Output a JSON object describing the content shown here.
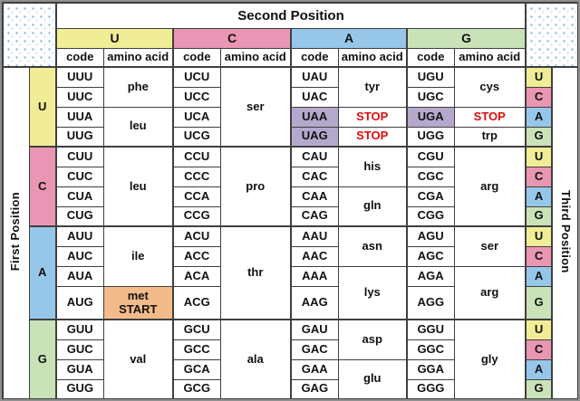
{
  "colors": {
    "base_U": "#F1ED96",
    "base_C": "#E896B3",
    "base_A": "#96C7E9",
    "base_G": "#C9E2B8",
    "stop_bg": "#B5A8CD",
    "stop_text": "#E00C0C",
    "start_bg": "#F4BB8A",
    "border": "#3F3F3F",
    "frame": "#8F8F8F",
    "dot_blue": "#8FBEE4",
    "dot_light": "#D6E8F7",
    "text": "#111111"
  },
  "table": {
    "top_header": "Second Position",
    "left_header": "First Position",
    "right_header": "Third Position",
    "groups": [
      "U",
      "C",
      "A",
      "G"
    ],
    "subheaders": [
      "code",
      "amino acid"
    ],
    "rows": [
      {
        "group_start": true,
        "cells": [
          {
            "text": "U",
            "kind": "row-letter",
            "rowspan": 4
          },
          {
            "text": "UUU",
            "kind": "code"
          },
          {
            "text": "phe",
            "kind": "amino",
            "rowspan": 2
          },
          {
            "text": "UCU",
            "kind": "code"
          },
          {
            "text": "ser",
            "kind": "amino",
            "rowspan": 4
          },
          {
            "text": "UAU",
            "kind": "code"
          },
          {
            "text": "tyr",
            "kind": "amino",
            "rowspan": 2
          },
          {
            "text": "UGU",
            "kind": "code"
          },
          {
            "text": "cys",
            "kind": "amino",
            "rowspan": 2
          },
          {
            "text": "U",
            "kind": "third-letter"
          }
        ]
      },
      {
        "cells": [
          {
            "text": "UUC",
            "kind": "code"
          },
          {
            "text": "UCC",
            "kind": "code"
          },
          {
            "text": "UAC",
            "kind": "code"
          },
          {
            "text": "UGC",
            "kind": "code"
          },
          {
            "text": "C",
            "kind": "third-letter"
          }
        ]
      },
      {
        "cells": [
          {
            "text": "UUA",
            "kind": "code"
          },
          {
            "text": "leu",
            "kind": "amino",
            "rowspan": 2
          },
          {
            "text": "UCA",
            "kind": "code"
          },
          {
            "text": "UAA",
            "kind": "stop-code"
          },
          {
            "text": "STOP",
            "kind": "stop-label"
          },
          {
            "text": "UGA",
            "kind": "stop-code"
          },
          {
            "text": "STOP",
            "kind": "stop-label"
          },
          {
            "text": "A",
            "kind": "third-letter"
          }
        ]
      },
      {
        "cells": [
          {
            "text": "UUG",
            "kind": "code"
          },
          {
            "text": "UCG",
            "kind": "code"
          },
          {
            "text": "UAG",
            "kind": "stop-code"
          },
          {
            "text": "STOP",
            "kind": "stop-label"
          },
          {
            "text": "UGG",
            "kind": "code"
          },
          {
            "text": "trp",
            "kind": "amino"
          },
          {
            "text": "G",
            "kind": "third-letter"
          }
        ]
      },
      {
        "group_start": true,
        "cells": [
          {
            "text": "C",
            "kind": "row-letter",
            "rowspan": 4
          },
          {
            "text": "CUU",
            "kind": "code"
          },
          {
            "text": "leu",
            "kind": "amino",
            "rowspan": 4
          },
          {
            "text": "CCU",
            "kind": "code"
          },
          {
            "text": "pro",
            "kind": "amino",
            "rowspan": 4
          },
          {
            "text": "CAU",
            "kind": "code"
          },
          {
            "text": "his",
            "kind": "amino",
            "rowspan": 2
          },
          {
            "text": "CGU",
            "kind": "code"
          },
          {
            "text": "arg",
            "kind": "amino",
            "rowspan": 4
          },
          {
            "text": "U",
            "kind": "third-letter"
          }
        ]
      },
      {
        "cells": [
          {
            "text": "CUC",
            "kind": "code"
          },
          {
            "text": "CCC",
            "kind": "code"
          },
          {
            "text": "CAC",
            "kind": "code"
          },
          {
            "text": "CGC",
            "kind": "code"
          },
          {
            "text": "C",
            "kind": "third-letter"
          }
        ]
      },
      {
        "cells": [
          {
            "text": "CUA",
            "kind": "code"
          },
          {
            "text": "CCA",
            "kind": "code"
          },
          {
            "text": "CAA",
            "kind": "code"
          },
          {
            "text": "gln",
            "kind": "amino",
            "rowspan": 2
          },
          {
            "text": "CGA",
            "kind": "code"
          },
          {
            "text": "A",
            "kind": "third-letter"
          }
        ]
      },
      {
        "cells": [
          {
            "text": "CUG",
            "kind": "code"
          },
          {
            "text": "CCG",
            "kind": "code"
          },
          {
            "text": "CAG",
            "kind": "code"
          },
          {
            "text": "CGG",
            "kind": "code"
          },
          {
            "text": "G",
            "kind": "third-letter"
          }
        ]
      },
      {
        "group_start": true,
        "cells": [
          {
            "text": "A",
            "kind": "row-letter",
            "rowspan": 4
          },
          {
            "text": "AUU",
            "kind": "code"
          },
          {
            "text": "ile",
            "kind": "amino",
            "rowspan": 3
          },
          {
            "text": "ACU",
            "kind": "code"
          },
          {
            "text": "thr",
            "kind": "amino",
            "rowspan": 4
          },
          {
            "text": "AAU",
            "kind": "code"
          },
          {
            "text": "asn",
            "kind": "amino",
            "rowspan": 2
          },
          {
            "text": "AGU",
            "kind": "code"
          },
          {
            "text": "ser",
            "kind": "amino",
            "rowspan": 2
          },
          {
            "text": "U",
            "kind": "third-letter"
          }
        ]
      },
      {
        "cells": [
          {
            "text": "AUC",
            "kind": "code"
          },
          {
            "text": "ACC",
            "kind": "code"
          },
          {
            "text": "AAC",
            "kind": "code"
          },
          {
            "text": "AGC",
            "kind": "code"
          },
          {
            "text": "C",
            "kind": "third-letter"
          }
        ]
      },
      {
        "cells": [
          {
            "text": "AUA",
            "kind": "code"
          },
          {
            "text": "ACA",
            "kind": "code"
          },
          {
            "text": "AAA",
            "kind": "code"
          },
          {
            "text": "lys",
            "kind": "amino",
            "rowspan": 2
          },
          {
            "text": "AGA",
            "kind": "code"
          },
          {
            "text": "arg",
            "kind": "amino",
            "rowspan": 2
          },
          {
            "text": "A",
            "kind": "third-letter"
          }
        ]
      },
      {
        "tall": true,
        "cells": [
          {
            "text": "AUG",
            "kind": "code"
          },
          {
            "lines": [
              "met",
              "START"
            ],
            "text": "met START",
            "kind": "start"
          },
          {
            "text": "ACG",
            "kind": "code"
          },
          {
            "text": "AAG",
            "kind": "code"
          },
          {
            "text": "AGG",
            "kind": "code"
          },
          {
            "text": "G",
            "kind": "third-letter"
          }
        ]
      },
      {
        "group_start": true,
        "cells": [
          {
            "text": "G",
            "kind": "row-letter",
            "rowspan": 4
          },
          {
            "text": "GUU",
            "kind": "code"
          },
          {
            "text": "val",
            "kind": "amino",
            "rowspan": 4
          },
          {
            "text": "GCU",
            "kind": "code"
          },
          {
            "text": "ala",
            "kind": "amino",
            "rowspan": 4
          },
          {
            "text": "GAU",
            "kind": "code"
          },
          {
            "text": "asp",
            "kind": "amino",
            "rowspan": 2
          },
          {
            "text": "GGU",
            "kind": "code"
          },
          {
            "text": "gly",
            "kind": "amino",
            "rowspan": 4
          },
          {
            "text": "U",
            "kind": "third-letter"
          }
        ]
      },
      {
        "cells": [
          {
            "text": "GUC",
            "kind": "code"
          },
          {
            "text": "GCC",
            "kind": "code"
          },
          {
            "text": "GAC",
            "kind": "code"
          },
          {
            "text": "GGC",
            "kind": "code"
          },
          {
            "text": "C",
            "kind": "third-letter"
          }
        ]
      },
      {
        "cells": [
          {
            "text": "GUA",
            "kind": "code"
          },
          {
            "text": "GCA",
            "kind": "code"
          },
          {
            "text": "GAA",
            "kind": "code"
          },
          {
            "text": "glu",
            "kind": "amino",
            "rowspan": 2
          },
          {
            "text": "GGA",
            "kind": "code"
          },
          {
            "text": "A",
            "kind": "third-letter"
          }
        ]
      },
      {
        "cells": [
          {
            "text": "GUG",
            "kind": "code"
          },
          {
            "text": "GCG",
            "kind": "code"
          },
          {
            "text": "GAG",
            "kind": "code"
          },
          {
            "text": "GGG",
            "kind": "code"
          },
          {
            "text": "G",
            "kind": "third-letter"
          }
        ]
      }
    ]
  }
}
